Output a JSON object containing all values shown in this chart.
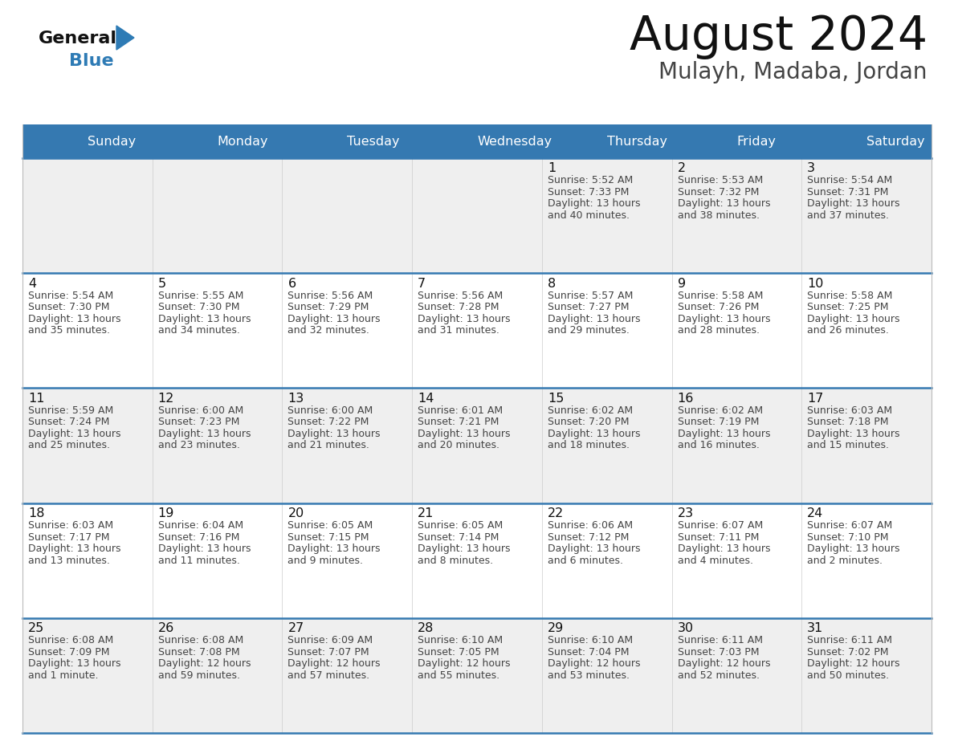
{
  "title": "August 2024",
  "subtitle": "Mulayh, Madaba, Jordan",
  "days_of_week": [
    "Sunday",
    "Monday",
    "Tuesday",
    "Wednesday",
    "Thursday",
    "Friday",
    "Saturday"
  ],
  "header_bg": "#3579B1",
  "header_text_color": "#FFFFFF",
  "row_bg_gray": "#EFEFEF",
  "row_bg_white": "#FFFFFF",
  "cell_text_color": "#444444",
  "day_num_color": "#111111",
  "divider_color": "#3579B1",
  "border_color": "#BBBBBB",
  "background_color": "#FFFFFF",
  "title_color": "#111111",
  "subtitle_color": "#444444",
  "logo_general_color": "#111111",
  "logo_blue_color": "#2E7BB5",
  "calendar_data": [
    [
      null,
      null,
      null,
      null,
      {
        "day": "1",
        "sunrise": "5:52 AM",
        "sunset": "7:33 PM",
        "daylight_h": "13 hours",
        "daylight_m": "40 minutes."
      },
      {
        "day": "2",
        "sunrise": "5:53 AM",
        "sunset": "7:32 PM",
        "daylight_h": "13 hours",
        "daylight_m": "38 minutes."
      },
      {
        "day": "3",
        "sunrise": "5:54 AM",
        "sunset": "7:31 PM",
        "daylight_h": "13 hours",
        "daylight_m": "37 minutes."
      }
    ],
    [
      {
        "day": "4",
        "sunrise": "5:54 AM",
        "sunset": "7:30 PM",
        "daylight_h": "13 hours",
        "daylight_m": "35 minutes."
      },
      {
        "day": "5",
        "sunrise": "5:55 AM",
        "sunset": "7:30 PM",
        "daylight_h": "13 hours",
        "daylight_m": "34 minutes."
      },
      {
        "day": "6",
        "sunrise": "5:56 AM",
        "sunset": "7:29 PM",
        "daylight_h": "13 hours",
        "daylight_m": "32 minutes."
      },
      {
        "day": "7",
        "sunrise": "5:56 AM",
        "sunset": "7:28 PM",
        "daylight_h": "13 hours",
        "daylight_m": "31 minutes."
      },
      {
        "day": "8",
        "sunrise": "5:57 AM",
        "sunset": "7:27 PM",
        "daylight_h": "13 hours",
        "daylight_m": "29 minutes."
      },
      {
        "day": "9",
        "sunrise": "5:58 AM",
        "sunset": "7:26 PM",
        "daylight_h": "13 hours",
        "daylight_m": "28 minutes."
      },
      {
        "day": "10",
        "sunrise": "5:58 AM",
        "sunset": "7:25 PM",
        "daylight_h": "13 hours",
        "daylight_m": "26 minutes."
      }
    ],
    [
      {
        "day": "11",
        "sunrise": "5:59 AM",
        "sunset": "7:24 PM",
        "daylight_h": "13 hours",
        "daylight_m": "25 minutes."
      },
      {
        "day": "12",
        "sunrise": "6:00 AM",
        "sunset": "7:23 PM",
        "daylight_h": "13 hours",
        "daylight_m": "23 minutes."
      },
      {
        "day": "13",
        "sunrise": "6:00 AM",
        "sunset": "7:22 PM",
        "daylight_h": "13 hours",
        "daylight_m": "21 minutes."
      },
      {
        "day": "14",
        "sunrise": "6:01 AM",
        "sunset": "7:21 PM",
        "daylight_h": "13 hours",
        "daylight_m": "20 minutes."
      },
      {
        "day": "15",
        "sunrise": "6:02 AM",
        "sunset": "7:20 PM",
        "daylight_h": "13 hours",
        "daylight_m": "18 minutes."
      },
      {
        "day": "16",
        "sunrise": "6:02 AM",
        "sunset": "7:19 PM",
        "daylight_h": "13 hours",
        "daylight_m": "16 minutes."
      },
      {
        "day": "17",
        "sunrise": "6:03 AM",
        "sunset": "7:18 PM",
        "daylight_h": "13 hours",
        "daylight_m": "15 minutes."
      }
    ],
    [
      {
        "day": "18",
        "sunrise": "6:03 AM",
        "sunset": "7:17 PM",
        "daylight_h": "13 hours",
        "daylight_m": "13 minutes."
      },
      {
        "day": "19",
        "sunrise": "6:04 AM",
        "sunset": "7:16 PM",
        "daylight_h": "13 hours",
        "daylight_m": "11 minutes."
      },
      {
        "day": "20",
        "sunrise": "6:05 AM",
        "sunset": "7:15 PM",
        "daylight_h": "13 hours",
        "daylight_m": "9 minutes."
      },
      {
        "day": "21",
        "sunrise": "6:05 AM",
        "sunset": "7:14 PM",
        "daylight_h": "13 hours",
        "daylight_m": "8 minutes."
      },
      {
        "day": "22",
        "sunrise": "6:06 AM",
        "sunset": "7:12 PM",
        "daylight_h": "13 hours",
        "daylight_m": "6 minutes."
      },
      {
        "day": "23",
        "sunrise": "6:07 AM",
        "sunset": "7:11 PM",
        "daylight_h": "13 hours",
        "daylight_m": "4 minutes."
      },
      {
        "day": "24",
        "sunrise": "6:07 AM",
        "sunset": "7:10 PM",
        "daylight_h": "13 hours",
        "daylight_m": "2 minutes."
      }
    ],
    [
      {
        "day": "25",
        "sunrise": "6:08 AM",
        "sunset": "7:09 PM",
        "daylight_h": "13 hours",
        "daylight_m": "1 minute."
      },
      {
        "day": "26",
        "sunrise": "6:08 AM",
        "sunset": "7:08 PM",
        "daylight_h": "12 hours",
        "daylight_m": "59 minutes."
      },
      {
        "day": "27",
        "sunrise": "6:09 AM",
        "sunset": "7:07 PM",
        "daylight_h": "12 hours",
        "daylight_m": "57 minutes."
      },
      {
        "day": "28",
        "sunrise": "6:10 AM",
        "sunset": "7:05 PM",
        "daylight_h": "12 hours",
        "daylight_m": "55 minutes."
      },
      {
        "day": "29",
        "sunrise": "6:10 AM",
        "sunset": "7:04 PM",
        "daylight_h": "12 hours",
        "daylight_m": "53 minutes."
      },
      {
        "day": "30",
        "sunrise": "6:11 AM",
        "sunset": "7:03 PM",
        "daylight_h": "12 hours",
        "daylight_m": "52 minutes."
      },
      {
        "day": "31",
        "sunrise": "6:11 AM",
        "sunset": "7:02 PM",
        "daylight_h": "12 hours",
        "daylight_m": "50 minutes."
      }
    ]
  ]
}
